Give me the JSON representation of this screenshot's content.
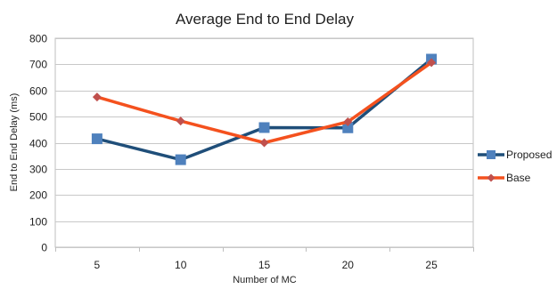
{
  "chart_data": {
    "type": "line",
    "title": "Average End to End Delay",
    "xlabel": "Number of MC",
    "ylabel": "End to End Delay (ms)",
    "categories": [
      "5",
      "10",
      "15",
      "20",
      "25"
    ],
    "ylim": [
      0,
      800
    ],
    "yticks": [
      0,
      100,
      200,
      300,
      400,
      500,
      600,
      700,
      800
    ],
    "grid": true,
    "legend_position": "right",
    "series": [
      {
        "name": "Proposed",
        "values": [
          415,
          335,
          458,
          457,
          720
        ],
        "color": "#1f4e79",
        "marker_color": "#4f81bd",
        "marker": "square"
      },
      {
        "name": "Base",
        "values": [
          575,
          483,
          400,
          480,
          707
        ],
        "color": "#f4511e",
        "marker_color": "#c0504d",
        "marker": "diamond"
      }
    ]
  }
}
